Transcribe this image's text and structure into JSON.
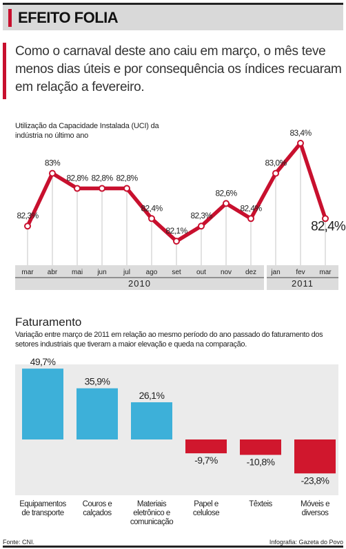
{
  "header": {
    "title": "EFEITO FOLIA"
  },
  "intro": {
    "text": "Como o carnaval deste ano caiu em março, o mês teve menos dias úteis e por consequência os índices recuaram em relação a fevereiro."
  },
  "footer": {
    "source": "Fonte: CNI.",
    "credit": "Infografia: Gazeta do Povo"
  },
  "colors": {
    "accent_red": "#c8102e",
    "bar_blue": "#3db0d9",
    "bar_red": "#d0172d",
    "header_gray": "#d9d9d9",
    "axis_band": "#dcdcdc"
  },
  "chart_data": [
    {
      "type": "line",
      "title": "Utilização da Capacidade Instalada (UCI) da indústria no último ano",
      "categories": [
        "mar",
        "abr",
        "mai",
        "jun",
        "jul",
        "ago",
        "set",
        "out",
        "nov",
        "dez",
        "jan",
        "fev",
        "mar"
      ],
      "values": [
        82.3,
        83.0,
        82.8,
        82.8,
        82.8,
        82.4,
        82.1,
        82.3,
        82.6,
        82.4,
        83.0,
        83.4,
        82.4
      ],
      "value_labels": [
        "82,3%",
        "83%",
        "82,8%",
        "82,8%",
        "82,8%",
        "82,4%",
        "82,1%",
        "82,3%",
        "82,6%",
        "82,4%",
        "83,0%",
        "83,4%",
        "82,4%"
      ],
      "year_groups": [
        {
          "label": "2010",
          "categories": [
            "mar",
            "abr",
            "mai",
            "jun",
            "jul",
            "ago",
            "set",
            "out",
            "nov",
            "dez"
          ]
        },
        {
          "label": "2011",
          "categories": [
            "jan",
            "fev",
            "mar"
          ]
        }
      ],
      "ylim": [
        81.9,
        83.6
      ],
      "grid": false,
      "series_color": "#c8102e"
    },
    {
      "type": "bar",
      "title": "Faturamento",
      "subtitle": "Variação entre março de 2011 em relação ao mesmo período do ano passado do faturamento dos setores industriais que tiveram a maior elevação e queda na comparação.",
      "categories": [
        [
          "Equipamentos",
          "de transporte"
        ],
        [
          "Couros e",
          "calçados"
        ],
        [
          "Materiais",
          "eletrônico e",
          "comunicação"
        ],
        [
          "Papel e",
          "celulose"
        ],
        [
          "Têxteis"
        ],
        [
          "Móveis e",
          "diversos"
        ]
      ],
      "values": [
        49.7,
        35.9,
        26.1,
        -9.7,
        -10.8,
        -23.8
      ],
      "value_labels": [
        "49,7%",
        "35,9%",
        "26,1%",
        "-9,7%",
        "-10,8%",
        "-23,8%"
      ],
      "ylim": [
        -27,
        52
      ],
      "positive_color": "#3db0d9",
      "negative_color": "#d0172d"
    }
  ]
}
